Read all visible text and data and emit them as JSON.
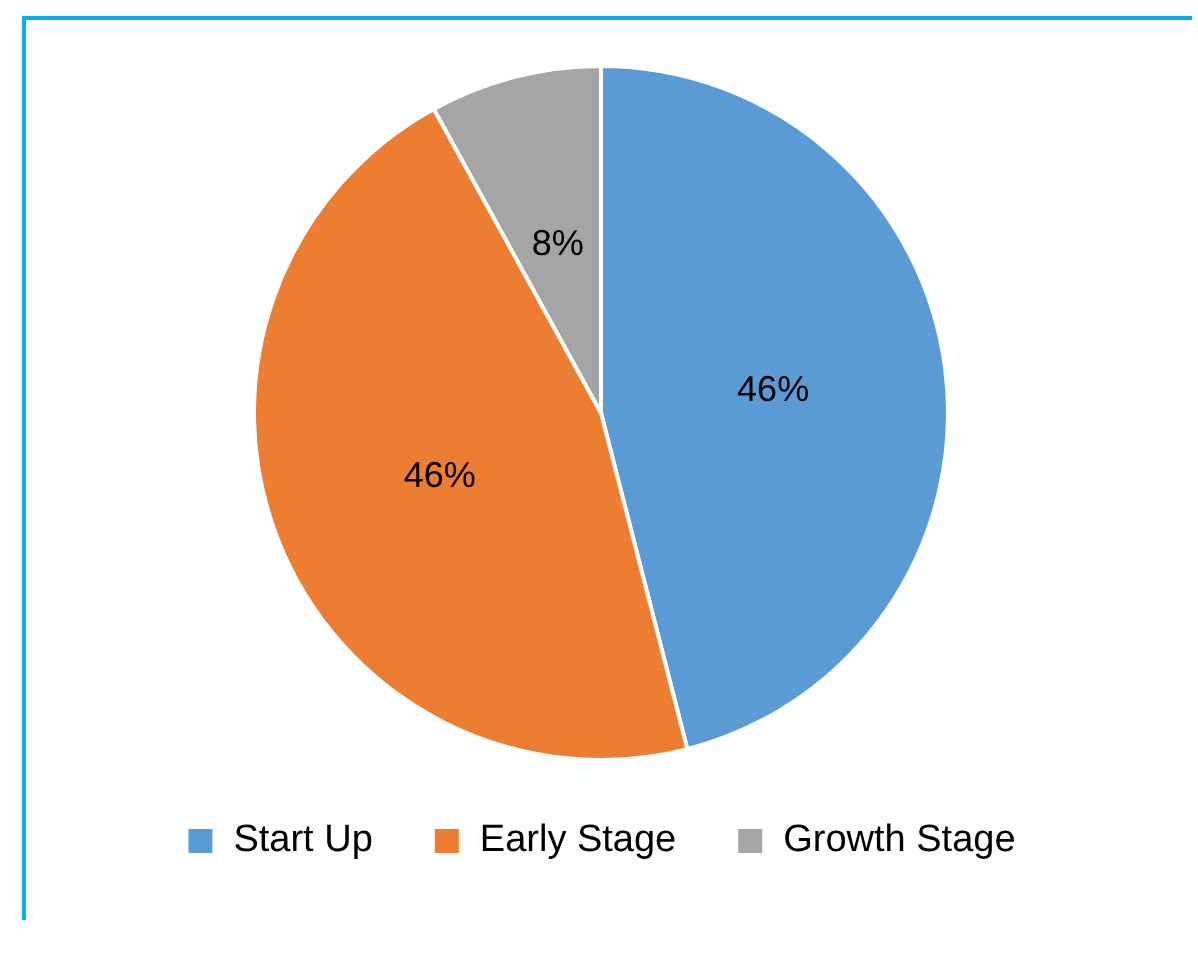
{
  "chart_data": {
    "type": "pie",
    "categories": [
      "Start Up",
      "Early Stage",
      "Growth Stage"
    ],
    "values": [
      46,
      46,
      8
    ],
    "colors": [
      "#5b9bd5",
      "#ed7d31",
      "#a5a5a5"
    ],
    "value_labels": [
      "46%",
      "46%",
      "8%"
    ],
    "legend": "bottom"
  }
}
